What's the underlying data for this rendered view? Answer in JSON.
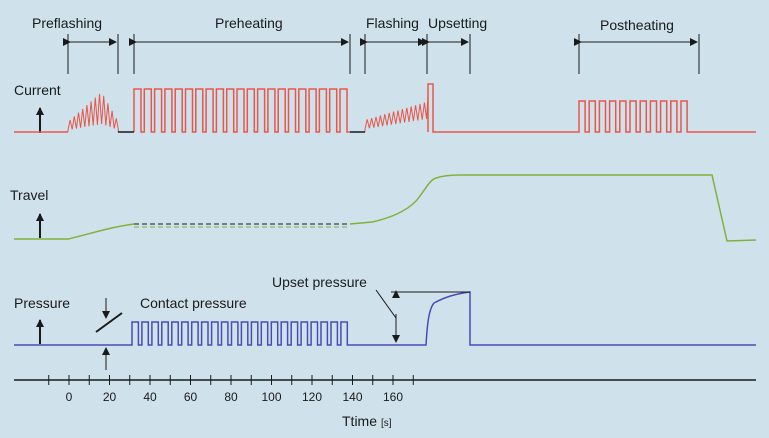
{
  "phases": {
    "preflashing": "Preflashing",
    "preheating": "Preheating",
    "flashing": "Flashing",
    "upsetting": "Upsetting",
    "postheating": "Postheating"
  },
  "signals": {
    "current": "Current",
    "travel": "Travel",
    "pressure": "Pressure"
  },
  "annotations": {
    "contact_pressure": "Contact pressure",
    "upset_pressure": "Upset pressure"
  },
  "axis": {
    "label": "Ttime",
    "unit": "[s]",
    "ticks": [
      "0",
      "20",
      "40",
      "60",
      "80",
      "100",
      "120",
      "140",
      "160"
    ]
  },
  "colors": {
    "current": "#e8564a",
    "travel": "#7fb23a",
    "pressure": "#4a4ab8",
    "background": "#cfe2ec",
    "ink": "#1a1a1a"
  }
}
